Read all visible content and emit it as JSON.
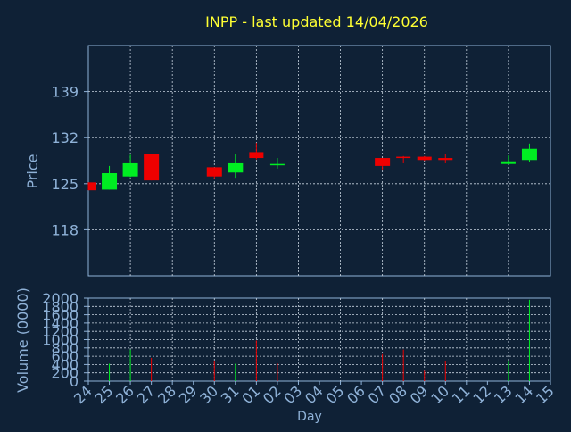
{
  "colors": {
    "background": "#0f2136",
    "title": "#ffff33",
    "axis_text": "#8fb2d8",
    "grid": "#c8d4e0",
    "up": "#00ee22",
    "down": "#ee0000"
  },
  "chart_data": [
    {
      "type": "candlestick",
      "title": "INPP - last updated 14/04/2026",
      "ylabel": "Price",
      "ylim": [
        111,
        146
      ],
      "yticks": [
        118,
        125,
        132,
        139
      ],
      "grid": true,
      "x_labels": [
        "24",
        "25",
        "26",
        "27",
        "28",
        "29",
        "30",
        "31",
        "01",
        "02",
        "03",
        "04",
        "05",
        "06",
        "07",
        "08",
        "09",
        "10",
        "11",
        "12",
        "13",
        "14",
        "15"
      ],
      "candles": [
        {
          "day": "24",
          "open": 125.2,
          "close": 124.0,
          "high": 125.2,
          "low": 124.0
        },
        {
          "day": "25",
          "open": 124.1,
          "close": 126.6,
          "high": 127.7,
          "low": 124.1
        },
        {
          "day": "26",
          "open": 126.1,
          "close": 128.1,
          "high": 129.4,
          "low": 126.0
        },
        {
          "day": "27",
          "open": 129.5,
          "close": 125.5,
          "high": 129.5,
          "low": 125.5
        },
        {
          "day": "30",
          "open": 127.5,
          "close": 126.1,
          "high": 127.5,
          "low": 125.8
        },
        {
          "day": "31",
          "open": 126.7,
          "close": 128.1,
          "high": 129.5,
          "low": 125.9
        },
        {
          "day": "01",
          "open": 129.8,
          "close": 128.9,
          "high": 131.2,
          "low": 128.7
        },
        {
          "day": "02",
          "open": 128.0,
          "close": 128.0,
          "high": 128.9,
          "low": 127.3
        },
        {
          "day": "07",
          "open": 128.9,
          "close": 127.7,
          "high": 128.9,
          "low": 127.0
        },
        {
          "day": "08",
          "open": 129.1,
          "close": 128.9,
          "high": 129.2,
          "low": 128.1
        },
        {
          "day": "09",
          "open": 129.1,
          "close": 128.6,
          "high": 129.2,
          "low": 128.5
        },
        {
          "day": "10",
          "open": 128.9,
          "close": 128.6,
          "high": 129.5,
          "low": 128.1
        },
        {
          "day": "13",
          "open": 128.0,
          "close": 128.4,
          "high": 129.3,
          "low": 127.9
        },
        {
          "day": "14",
          "open": 128.6,
          "close": 130.3,
          "high": 131.1,
          "low": 128.3
        }
      ]
    },
    {
      "type": "bar",
      "ylabel": "Volume (0000)",
      "xlabel": "Day",
      "ylim": [
        0,
        2000
      ],
      "yticks": [
        0,
        200,
        400,
        600,
        800,
        1000,
        1200,
        1400,
        1600,
        1800,
        2000
      ],
      "grid": true,
      "x_labels": [
        "24",
        "25",
        "26",
        "27",
        "28",
        "29",
        "30",
        "31",
        "01",
        "02",
        "03",
        "04",
        "05",
        "06",
        "07",
        "08",
        "09",
        "10",
        "11",
        "12",
        "13",
        "14",
        "15"
      ],
      "bars": [
        {
          "day": "25",
          "value": 420,
          "direction": "up"
        },
        {
          "day": "26",
          "value": 760,
          "direction": "up"
        },
        {
          "day": "27",
          "value": 560,
          "direction": "down"
        },
        {
          "day": "30",
          "value": 490,
          "direction": "down"
        },
        {
          "day": "31",
          "value": 420,
          "direction": "up"
        },
        {
          "day": "01",
          "value": 980,
          "direction": "down"
        },
        {
          "day": "02",
          "value": 430,
          "direction": "down"
        },
        {
          "day": "07",
          "value": 650,
          "direction": "down"
        },
        {
          "day": "08",
          "value": 760,
          "direction": "down"
        },
        {
          "day": "09",
          "value": 250,
          "direction": "down"
        },
        {
          "day": "10",
          "value": 490,
          "direction": "down"
        },
        {
          "day": "13",
          "value": 470,
          "direction": "up"
        },
        {
          "day": "14",
          "value": 1960,
          "direction": "up"
        }
      ]
    }
  ]
}
